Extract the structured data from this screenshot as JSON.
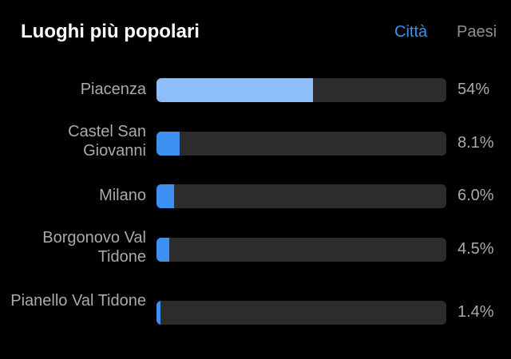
{
  "colors": {
    "background": "#000000",
    "title": "#ffffff",
    "tab_active": "#3d8ff0",
    "tab_inactive": "#8e8e93",
    "track": "#2c2c2e",
    "fill_primary": "#8ebef8",
    "fill_secondary": "#3d8ff0",
    "label": "#a9a9ae"
  },
  "header": {
    "title": "Luoghi più popolari",
    "tabs": [
      {
        "label": "Città",
        "active": true
      },
      {
        "label": "Paesi",
        "active": false
      }
    ]
  },
  "rows": [
    {
      "label": "Piacenza",
      "value": "54%",
      "percent": 54
    },
    {
      "label": "Castel San Giovanni",
      "value": "8.1%",
      "percent": 8.1
    },
    {
      "label": "Milano",
      "value": "6.0%",
      "percent": 6.0
    },
    {
      "label": "Borgonovo Val Tidone",
      "value": "4.5%",
      "percent": 4.5
    },
    {
      "label": "Pianello Val Tidone",
      "value": "1.4%",
      "percent": 1.4
    }
  ]
}
